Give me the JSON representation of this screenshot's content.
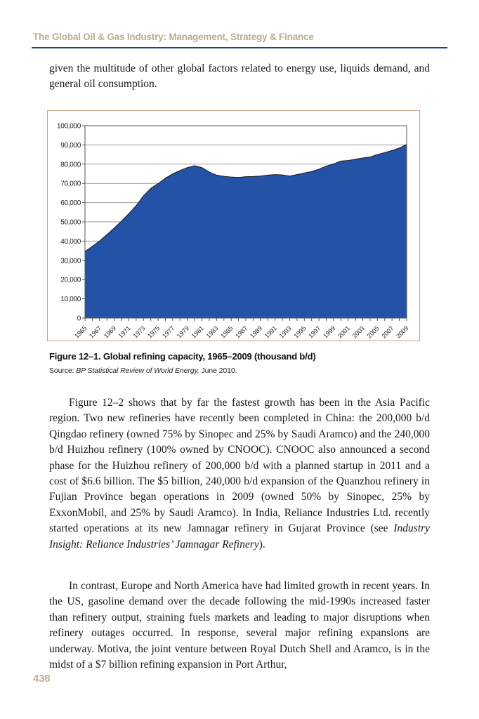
{
  "header": {
    "title": "The Global Oil & Gas Industry: Management, Strategy & Finance",
    "rule_color": "#26417E",
    "title_color": "#BDAC8E"
  },
  "page": {
    "number": "438"
  },
  "intro_paragraph": {
    "segments": [
      {
        "t": "given the multitude of other global factors related to energy use, liquids demand, and general oil consumption.",
        "i": false
      }
    ]
  },
  "figure": {
    "caption": "Figure 12–1. Global refining capacity, 1965–2009 (thousand b/d)",
    "source_segments": [
      {
        "t": "Source: ",
        "i": false
      },
      {
        "t": "BP Statistical Review of World Energy,",
        "i": true
      },
      {
        "t": " June 2010.",
        "i": false
      }
    ]
  },
  "paragraph_asia": {
    "segments": [
      {
        "t": "Figure 12–2 shows that by far the fastest growth has been in the Asia Pacific region. Two new refineries have recently been completed in China: the 200,000 b/d Qingdao refinery (owned 75% by Sinopec and 25% by Saudi Aramco) and the 240,000 b/d Huizhou refinery (100% owned by CNOOC). CNOOC also announced a second phase for the Huizhou refinery of 200,000 b/d with a planned startup in 2011 and a cost of $6.6 billion. The $5 billion, 240,000 b/d expansion of the Quanzhou refinery in Fujian Province began operations in 2009 (owned 50% by Sinopec, 25% by ExxonMobil, and 25% by Saudi Aramco). In India, Reliance Industries Ltd. recently started operations at its new Jamnagar refinery in Gujarat Province (see ",
        "i": false
      },
      {
        "t": "Industry Insight: Reliance Industries’ Jamnagar Refinery",
        "i": true
      },
      {
        "t": ").",
        "i": false
      }
    ]
  },
  "paragraph_west": {
    "segments": [
      {
        "t": "In contrast, Europe and North America have had limited growth in recent years. In the US, gasoline demand over the decade following the mid-1990s increased faster than refinery output, straining fuels markets and leading to major disruptions when refinery outages occurred. In response, several major refining expansions are underway. Motiva, the joint venture between Royal Dutch Shell and Aramco, is in the midst of a $7 billion refining expansion in Port Arthur,",
        "i": false
      }
    ]
  },
  "chart_data": {
    "type": "area",
    "title": "Global refining capacity, 1965–2009 (thousand b/d)",
    "xlabel": "",
    "ylabel": "",
    "x": [
      1965,
      1966,
      1967,
      1968,
      1969,
      1970,
      1971,
      1972,
      1973,
      1974,
      1975,
      1976,
      1977,
      1978,
      1979,
      1980,
      1981,
      1982,
      1983,
      1984,
      1985,
      1986,
      1987,
      1988,
      1989,
      1990,
      1991,
      1992,
      1993,
      1994,
      1995,
      1996,
      1997,
      1998,
      1999,
      2000,
      2001,
      2002,
      2003,
      2004,
      2005,
      2006,
      2007,
      2008,
      2009
    ],
    "values": [
      34600,
      37300,
      40100,
      43400,
      46800,
      50400,
      54300,
      58400,
      63500,
      67400,
      69900,
      72700,
      75000,
      76700,
      78200,
      79200,
      78200,
      75900,
      74300,
      73700,
      73300,
      73100,
      73500,
      73600,
      73800,
      74300,
      74600,
      74400,
      73800,
      74600,
      75400,
      76200,
      77400,
      79000,
      80100,
      81600,
      81900,
      82600,
      83200,
      83700,
      85000,
      86000,
      87100,
      88400,
      90300
    ],
    "ylim": [
      0,
      100000
    ],
    "ytick_step": 10000,
    "xtick_label_every": 2,
    "grid": true,
    "legend": "none",
    "colors": {
      "fill": "#2352A7",
      "line": "#1a1a1a",
      "grid": "#999999",
      "axis": "#555555",
      "tick_label": "#222222",
      "figure_border": "#C1A186"
    }
  }
}
